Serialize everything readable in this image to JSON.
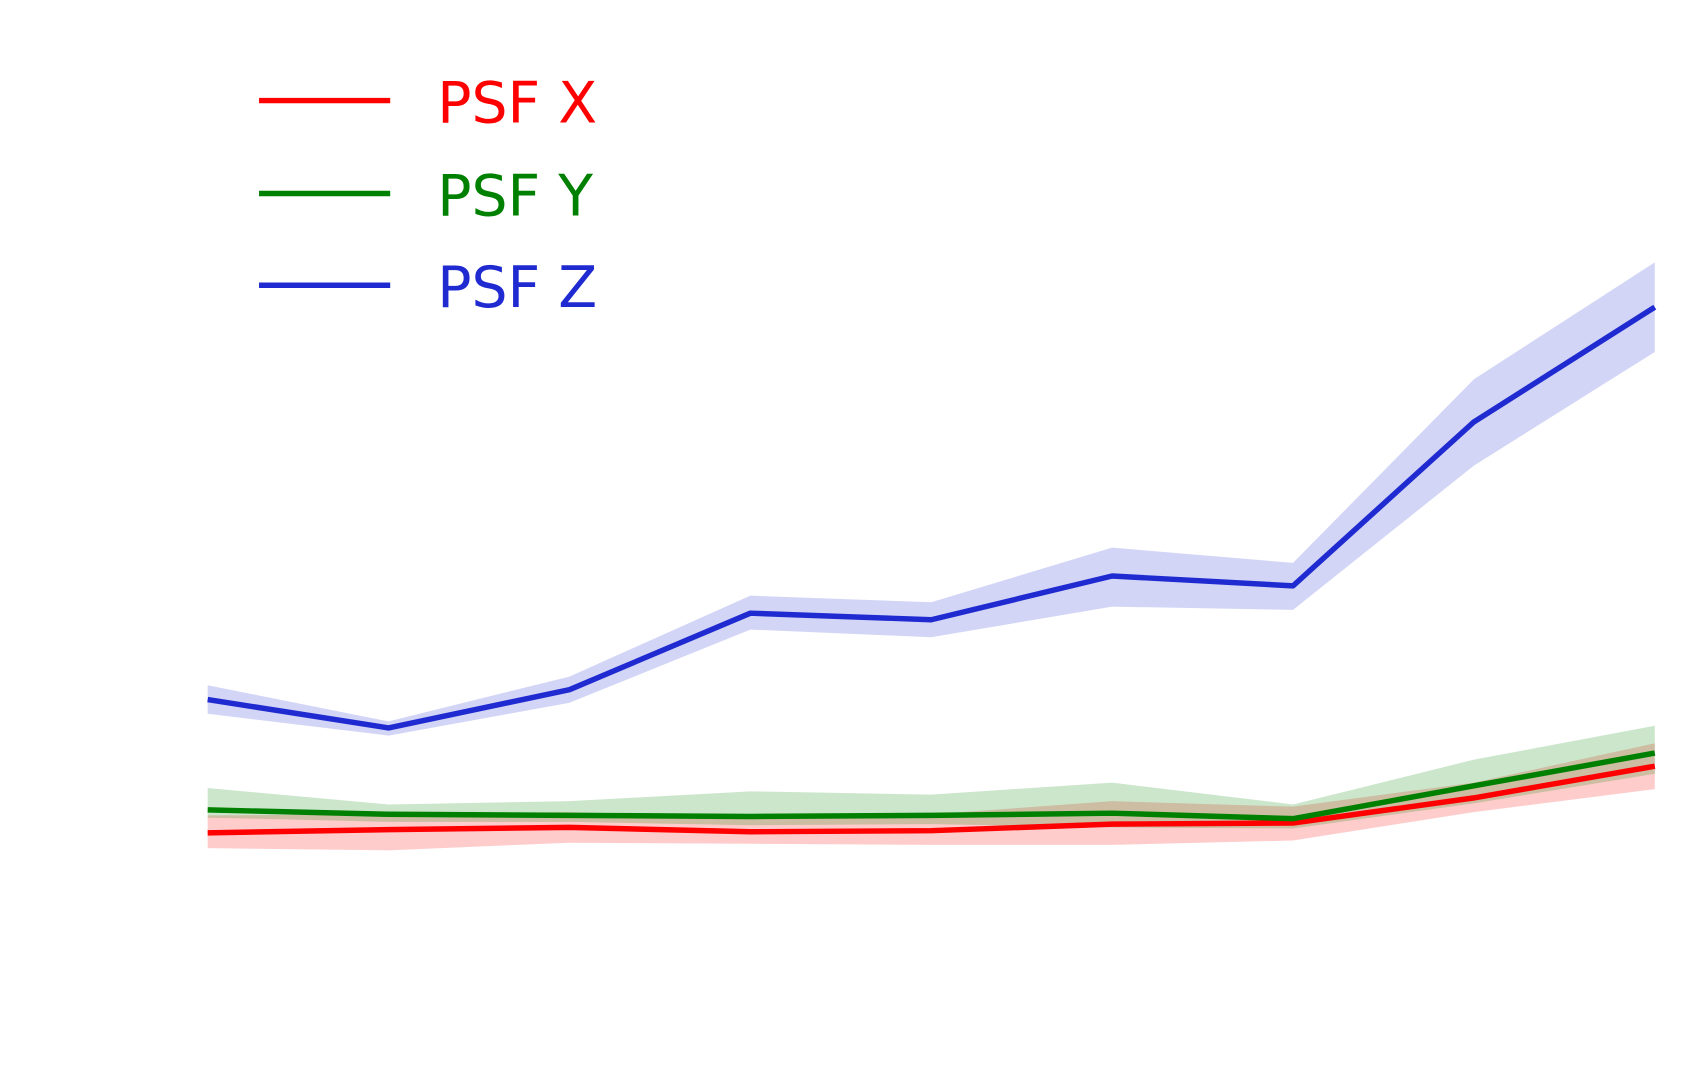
{
  "chart_data": {
    "type": "line",
    "title": "",
    "xlabel": "",
    "ylabel": "",
    "axes_visible": false,
    "grid": false,
    "legend_placement": "top-left",
    "x": [
      1,
      2,
      3,
      4,
      5,
      6,
      7,
      8,
      9
    ],
    "ylim": [
      0,
      9
    ],
    "series": [
      {
        "name": "PSF X",
        "color": "#ff0000",
        "values": [
          1.38,
          1.41,
          1.43,
          1.39,
          1.4,
          1.46,
          1.47,
          1.7,
          1.99
        ],
        "upper": [
          1.54,
          1.55,
          1.57,
          1.52,
          1.55,
          1.67,
          1.62,
          1.84,
          2.2
        ],
        "lower": [
          1.24,
          1.22,
          1.29,
          1.28,
          1.27,
          1.27,
          1.31,
          1.57,
          1.78
        ]
      },
      {
        "name": "PSF Y",
        "color": "#008000",
        "values": [
          1.59,
          1.55,
          1.54,
          1.53,
          1.54,
          1.56,
          1.51,
          1.81,
          2.11
        ],
        "upper": [
          1.79,
          1.64,
          1.67,
          1.76,
          1.73,
          1.84,
          1.64,
          2.05,
          2.36
        ],
        "lower": [
          1.52,
          1.48,
          1.48,
          1.45,
          1.46,
          1.43,
          1.42,
          1.65,
          1.92
        ]
      },
      {
        "name": "PSF Z",
        "color": "#1f2bd1",
        "values": [
          2.6,
          2.34,
          2.69,
          3.39,
          3.33,
          3.73,
          3.64,
          5.14,
          6.19
        ],
        "upper": [
          2.73,
          2.4,
          2.81,
          3.55,
          3.49,
          3.99,
          3.85,
          5.53,
          6.6
        ],
        "lower": [
          2.47,
          2.27,
          2.57,
          3.24,
          3.17,
          3.45,
          3.42,
          4.74,
          5.78
        ]
      }
    ]
  }
}
